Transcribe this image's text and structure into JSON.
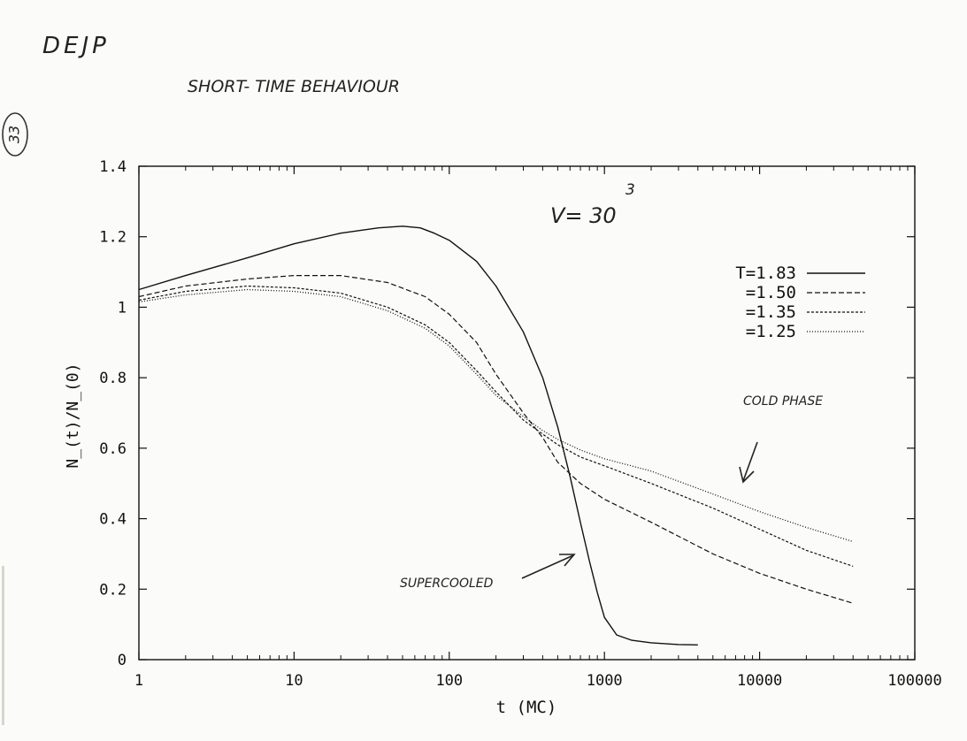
{
  "annotations": {
    "corner_label": "DEJP",
    "heading": "SHORT- TIME   BEHAVIOUR",
    "page_number": "33",
    "volume": "V= 30",
    "volume_exponent": "3",
    "cold_phase": "COLD PHASE",
    "supercooled": "SUPERCOOLED"
  },
  "chart_data": {
    "type": "line",
    "xscale": "log",
    "xlabel": "t  (MC)",
    "ylabel": "N_(t)/N_(0)",
    "xlim": [
      1,
      100000
    ],
    "ylim": [
      0,
      1.4
    ],
    "xticks": [
      1,
      10,
      100,
      1000,
      10000,
      100000
    ],
    "xtick_labels": [
      "1",
      "10",
      "100",
      "1000",
      "10000",
      "100000"
    ],
    "yticks": [
      0,
      0.2,
      0.4,
      0.6,
      0.8,
      1,
      1.2,
      1.4
    ],
    "ytick_labels": [
      "0",
      "0.2",
      "0.4",
      "0.6",
      "0.8",
      "1",
      "1.2",
      "1.4"
    ],
    "grid": false,
    "legend_position": "top-right",
    "series": [
      {
        "name": "T=1.83",
        "dash": "solid",
        "x": [
          1,
          2,
          5,
          10,
          20,
          35,
          50,
          65,
          80,
          100,
          150,
          200,
          300,
          400,
          500,
          600,
          700,
          800,
          900,
          1000,
          1200,
          1500,
          2000,
          3000,
          4000
        ],
        "y": [
          1.05,
          1.09,
          1.14,
          1.18,
          1.21,
          1.225,
          1.23,
          1.225,
          1.21,
          1.19,
          1.13,
          1.06,
          0.93,
          0.8,
          0.66,
          0.52,
          0.39,
          0.28,
          0.19,
          0.12,
          0.07,
          0.055,
          0.048,
          0.043,
          0.042
        ]
      },
      {
        "name": "=1.50",
        "dash": "dashed",
        "x": [
          1,
          2,
          5,
          10,
          20,
          40,
          70,
          100,
          150,
          200,
          300,
          400,
          500,
          700,
          1000,
          2000,
          5000,
          10000,
          20000,
          40000
        ],
        "y": [
          1.03,
          1.06,
          1.08,
          1.09,
          1.09,
          1.07,
          1.03,
          0.98,
          0.9,
          0.81,
          0.7,
          0.63,
          0.56,
          0.5,
          0.455,
          0.39,
          0.3,
          0.245,
          0.2,
          0.16
        ]
      },
      {
        "name": "=1.35",
        "dash": "short-dashed",
        "x": [
          1,
          2,
          5,
          10,
          20,
          40,
          70,
          100,
          150,
          200,
          300,
          400,
          500,
          700,
          1000,
          2000,
          5000,
          10000,
          20000,
          40000
        ],
        "y": [
          1.02,
          1.045,
          1.06,
          1.055,
          1.04,
          1.0,
          0.95,
          0.9,
          0.82,
          0.76,
          0.68,
          0.64,
          0.61,
          0.575,
          0.55,
          0.5,
          0.43,
          0.37,
          0.31,
          0.265
        ]
      },
      {
        "name": "=1.25",
        "dash": "dotted",
        "x": [
          1,
          2,
          5,
          10,
          20,
          40,
          70,
          100,
          150,
          200,
          300,
          400,
          500,
          700,
          1000,
          2000,
          5000,
          10000,
          20000,
          40000
        ],
        "y": [
          1.015,
          1.035,
          1.05,
          1.045,
          1.03,
          0.99,
          0.94,
          0.89,
          0.81,
          0.75,
          0.69,
          0.65,
          0.625,
          0.595,
          0.57,
          0.535,
          0.47,
          0.42,
          0.375,
          0.335
        ]
      }
    ]
  }
}
